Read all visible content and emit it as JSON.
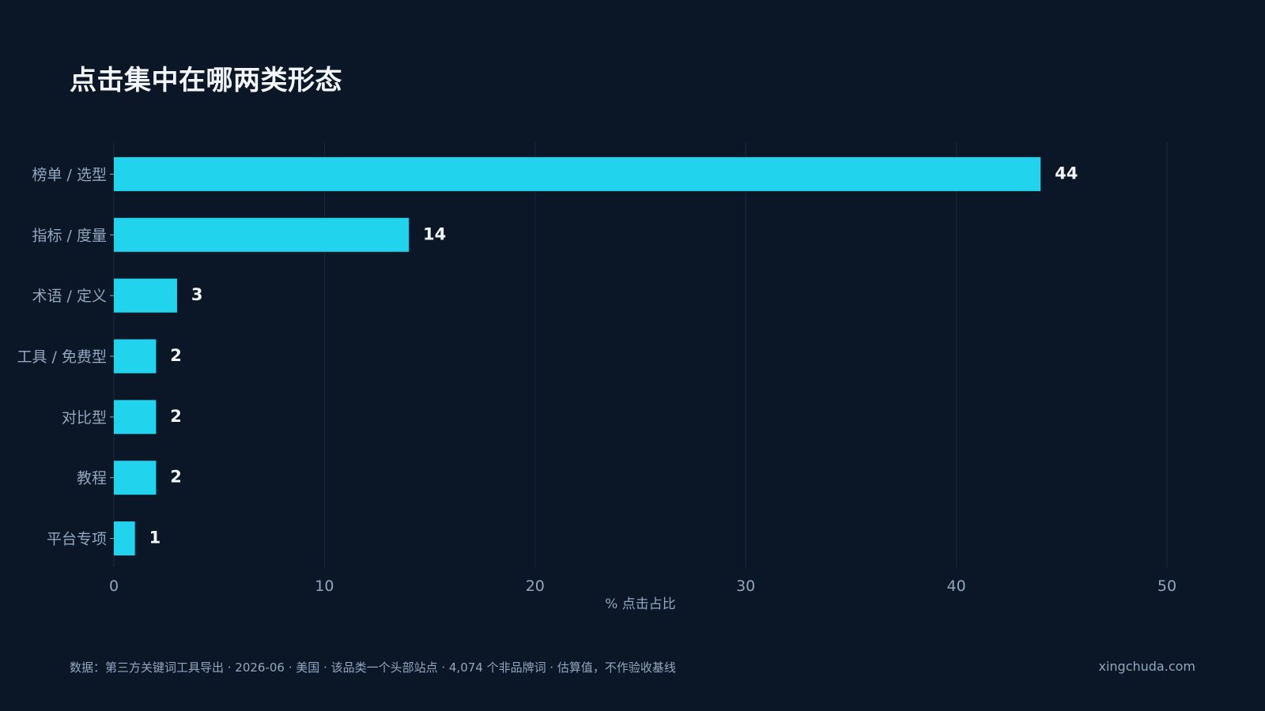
{
  "title": "点击集中在哪两类形态",
  "footer": {
    "source": "数据：第三方关键词工具导出 · 2026-06 · 美国 · 该品类一个头部站点 · 4,074 个非品牌词 · 估算值，不作验收基线",
    "site": "xingchuda.com"
  },
  "colors": {
    "background": "#0b1626",
    "bar": "#22d3ee",
    "grid": "#1a2940",
    "tick_text": "#93a6bf",
    "value_text": "#f2f6fb"
  },
  "chart_data": {
    "type": "bar",
    "orientation": "horizontal",
    "categories": [
      "榜单 / 选型",
      "指标 / 度量",
      "术语 / 定义",
      "工具 / 免费型",
      "对比型",
      "教程",
      "平台专项"
    ],
    "values": [
      44,
      14,
      3,
      2,
      2,
      2,
      1
    ],
    "xlabel": "% 点击占比",
    "ylabel": "",
    "xlim": [
      0,
      50
    ],
    "xticks": [
      0,
      10,
      20,
      30,
      40,
      50
    ],
    "grid": "vertical",
    "legend": "none"
  }
}
